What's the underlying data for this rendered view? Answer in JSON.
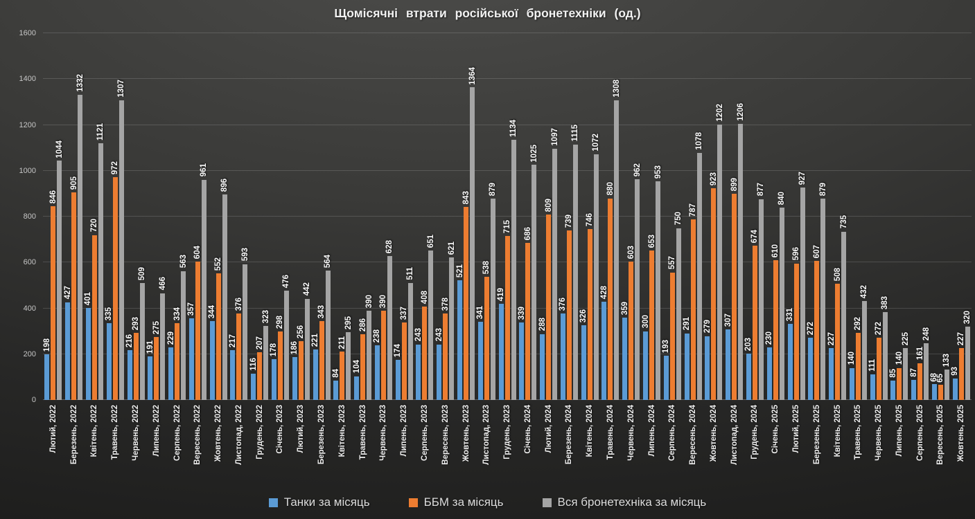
{
  "chart_data": {
    "type": "bar",
    "title": "Щомісячні втрати російської бронетехніки (од.)",
    "ylim": [
      0,
      1600
    ],
    "yticks": [
      0,
      200,
      400,
      600,
      800,
      1000,
      1200,
      1400,
      1600
    ],
    "grid": true,
    "legend_position": "bottom",
    "categories": [
      "Лютий, 2022",
      "Березень, 2022",
      "Квітень, 2022",
      "Травень, 2022",
      "Червень, 2022",
      "Липень, 2022",
      "Серпень, 2022",
      "Вересень, 2022",
      "Жовтень, 2022",
      "Листопад, 2022",
      "Грудень, 2022",
      "Січень, 2023",
      "Лютий, 2023",
      "Березень, 2023",
      "Квітень, 2023",
      "Травень, 2023",
      "Червень, 2023",
      "Липень, 2023",
      "Серпень, 2023",
      "Вересень, 2023",
      "Жовтень, 2023",
      "Листопад, 2023",
      "Грудень, 2023",
      "Січень, 2024",
      "Лютий, 2024",
      "Березень, 2024",
      "Квітень, 2024",
      "Травень, 2024",
      "Червень, 2024",
      "Липень, 2024",
      "Серпень, 2024",
      "Вересень, 2024",
      "Жовтень, 2024",
      "Листопад, 2024",
      "Грудень, 2024",
      "Січень, 2025",
      "Лютий, 2025",
      "Березень, 2025",
      "Квітень, 2025",
      "Травень, 2025",
      "Червень, 2025",
      "Липень, 2025",
      "Серпень, 2025",
      "Вересень, 2025",
      "Жовтень, 2025"
    ],
    "series": [
      {
        "name": "Танки за місяць",
        "color": "#5B9BD5",
        "values": [
          198,
          427,
          401,
          335,
          216,
          191,
          229,
          357,
          344,
          217,
          116,
          178,
          186,
          221,
          84,
          104,
          238,
          174,
          243,
          243,
          521,
          341,
          419,
          339,
          288,
          376,
          326,
          428,
          359,
          300,
          193,
          291,
          279,
          307,
          203,
          230,
          331,
          272,
          227,
          140,
          111,
          85,
          87,
          68,
          93
        ]
      },
      {
        "name": "ББМ за місяць",
        "color": "#ED7D31",
        "values": [
          846,
          905,
          720,
          972,
          293,
          275,
          334,
          604,
          552,
          376,
          207,
          298,
          256,
          343,
          211,
          286,
          390,
          337,
          408,
          378,
          843,
          538,
          715,
          686,
          809,
          739,
          746,
          880,
          603,
          653,
          557,
          787,
          923,
          899,
          674,
          610,
          596,
          607,
          508,
          292,
          272,
          140,
          161,
          65,
          227
        ]
      },
      {
        "name": "Вся бронетехніка за місяць",
        "color": "#A5A5A5",
        "values": [
          1044,
          1332,
          1121,
          1307,
          509,
          466,
          563,
          961,
          896,
          593,
          323,
          476,
          442,
          564,
          295,
          390,
          628,
          511,
          651,
          621,
          1364,
          879,
          1134,
          1025,
          1097,
          1115,
          1072,
          1308,
          962,
          953,
          750,
          1078,
          1202,
          1206,
          877,
          840,
          927,
          879,
          735,
          432,
          383,
          225,
          248,
          133,
          320
        ]
      }
    ]
  }
}
